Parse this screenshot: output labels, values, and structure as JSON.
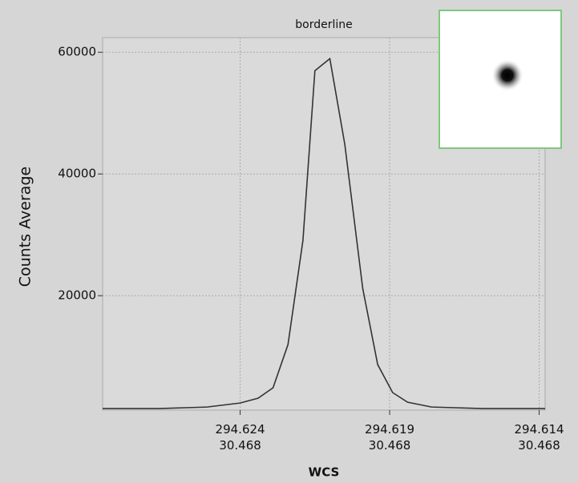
{
  "chart_data": {
    "type": "line",
    "title": "borderline",
    "xlabel": "WCS",
    "ylabel": "Counts Average",
    "x": [
      294.6286,
      294.6267,
      294.6251,
      294.624,
      294.6234,
      294.6229,
      294.6224,
      294.6219,
      294.6215,
      294.621,
      294.6205,
      294.6199,
      294.6194,
      294.6189,
      294.6184,
      294.6176,
      294.6159,
      294.6138
    ],
    "series": [
      {
        "color": "#333333",
        "values": [
          1450,
          1450,
          1710,
          2370,
          3160,
          4870,
          11970,
          29080,
          56970,
          58950,
          44870,
          21180,
          8680,
          4080,
          2500,
          1710,
          1450,
          1450
        ]
      }
    ],
    "xlim": [
      294.6286,
      294.6138
    ],
    "xticks": [
      {
        "value": 294.624,
        "label": "294.624\n30.468"
      },
      {
        "value": 294.619,
        "label": "294.619\n30.468"
      },
      {
        "value": 294.614,
        "label": "294.614\n30.468"
      }
    ],
    "ylim": [
      1200,
      62400
    ],
    "yticks": [
      20000,
      40000,
      60000
    ],
    "grid": true
  }
}
